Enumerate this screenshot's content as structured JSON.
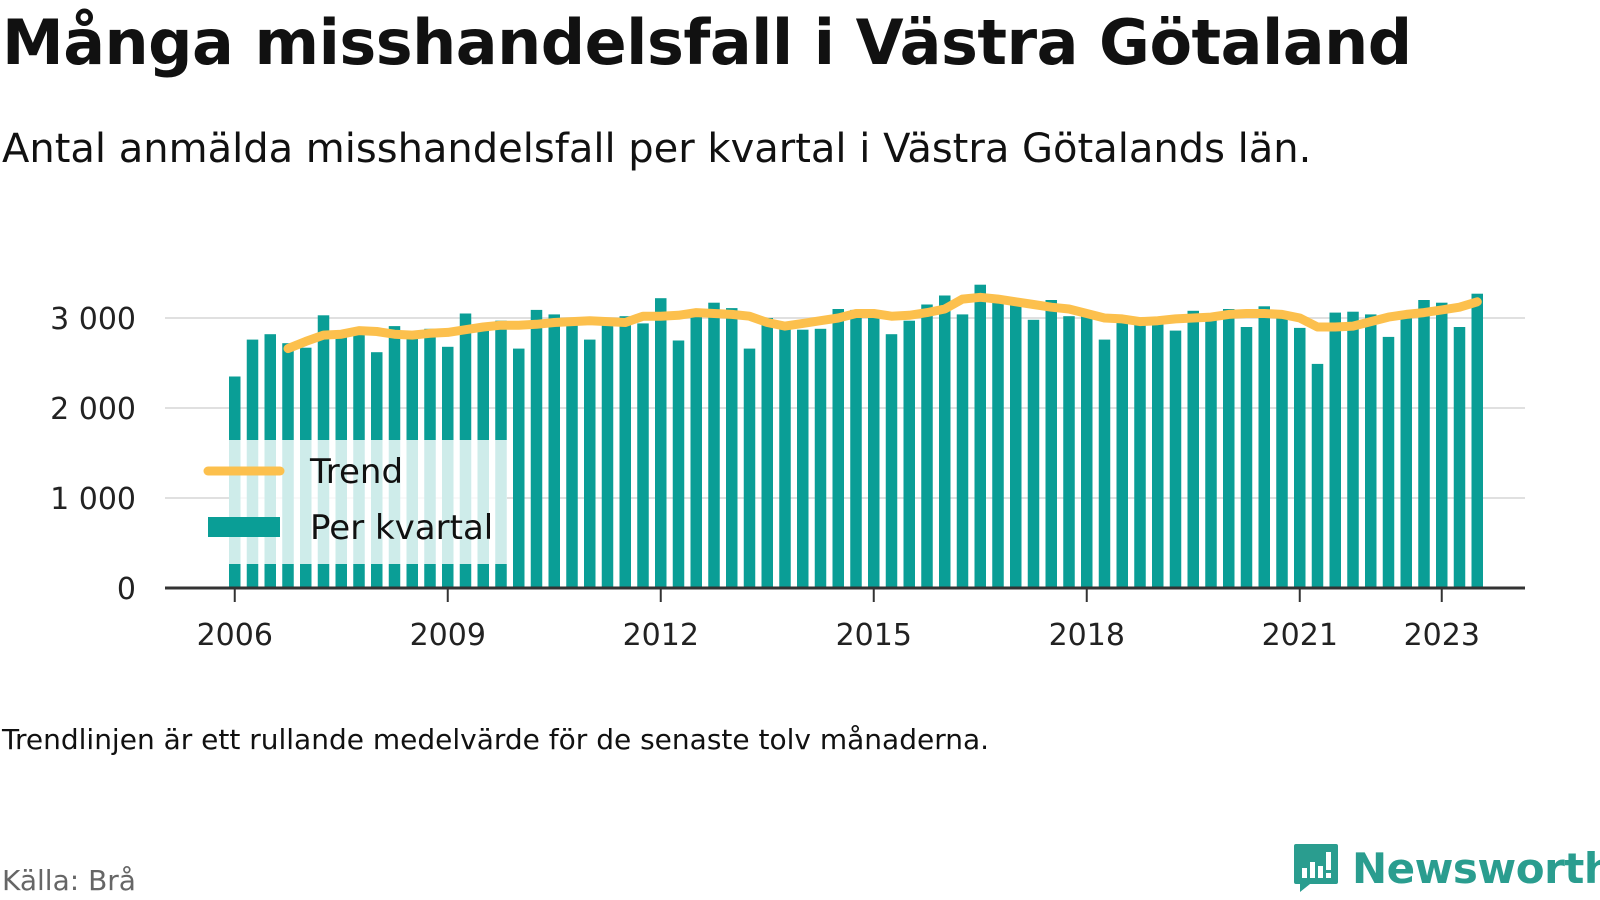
{
  "header": {
    "title": "Många misshandelsfall i Västra Götaland",
    "subtitle": "Antal anmälda misshandelsfall per kvartal i Västra Götalands län."
  },
  "footer": {
    "note": "Trendlinjen är ett rullande medelvärde för de senaste tolv månaderna.",
    "source": "Källa: Brå",
    "brand": "Newsworthy"
  },
  "colors": {
    "bar": "#0a9e96",
    "trend": "#fcc04d",
    "grid": "#e0e0e0",
    "axis": "#333333"
  },
  "chart_data": {
    "type": "bar",
    "start_year": 2006,
    "start_quarter": 1,
    "y_ticks": [
      0,
      1000,
      2000,
      3000
    ],
    "y_tick_labels": [
      "0",
      "1 000",
      "2 000",
      "3 000"
    ],
    "x_ticks": [
      2006,
      2009,
      2012,
      2015,
      2018,
      2021,
      2023
    ],
    "ylim": [
      0,
      3400
    ],
    "legend_position": "bottom-left",
    "grid": true,
    "series": [
      {
        "name": "Per kvartal",
        "type": "bar",
        "values": [
          2350,
          2760,
          2820,
          2720,
          2670,
          3030,
          2790,
          2840,
          2620,
          2910,
          2780,
          2880,
          2680,
          3050,
          2870,
          2970,
          2660,
          3090,
          3040,
          2950,
          2760,
          3000,
          3020,
          2940,
          3220,
          2750,
          3080,
          3170,
          3110,
          2660,
          3000,
          2930,
          2870,
          2880,
          3100,
          3090,
          3020,
          2820,
          2970,
          3150,
          3250,
          3040,
          3370,
          3180,
          3140,
          2980,
          3200,
          3020,
          3060,
          2760,
          3000,
          2990,
          2940,
          2860,
          3080,
          2990,
          3100,
          2900,
          3130,
          3060,
          2890,
          2490,
          3060,
          3070,
          3040,
          2790,
          3040,
          3200,
          3170,
          2900,
          3270
        ]
      },
      {
        "name": "Trend",
        "type": "line",
        "values": [
          null,
          null,
          null,
          2660,
          2740,
          2810,
          2820,
          2860,
          2850,
          2820,
          2810,
          2830,
          2840,
          2870,
          2900,
          2920,
          2920,
          2930,
          2950,
          2960,
          2970,
          2960,
          2950,
          3020,
          3020,
          3030,
          3060,
          3050,
          3040,
          3020,
          2950,
          2910,
          2940,
          2970,
          3000,
          3050,
          3050,
          3020,
          3030,
          3060,
          3100,
          3210,
          3230,
          3210,
          3180,
          3150,
          3120,
          3100,
          3050,
          3000,
          2990,
          2960,
          2970,
          2990,
          3000,
          3010,
          3040,
          3050,
          3050,
          3040,
          3000,
          2900,
          2900,
          2910,
          2960,
          3010,
          3040,
          3060,
          3090,
          3120,
          3180
        ]
      }
    ]
  }
}
